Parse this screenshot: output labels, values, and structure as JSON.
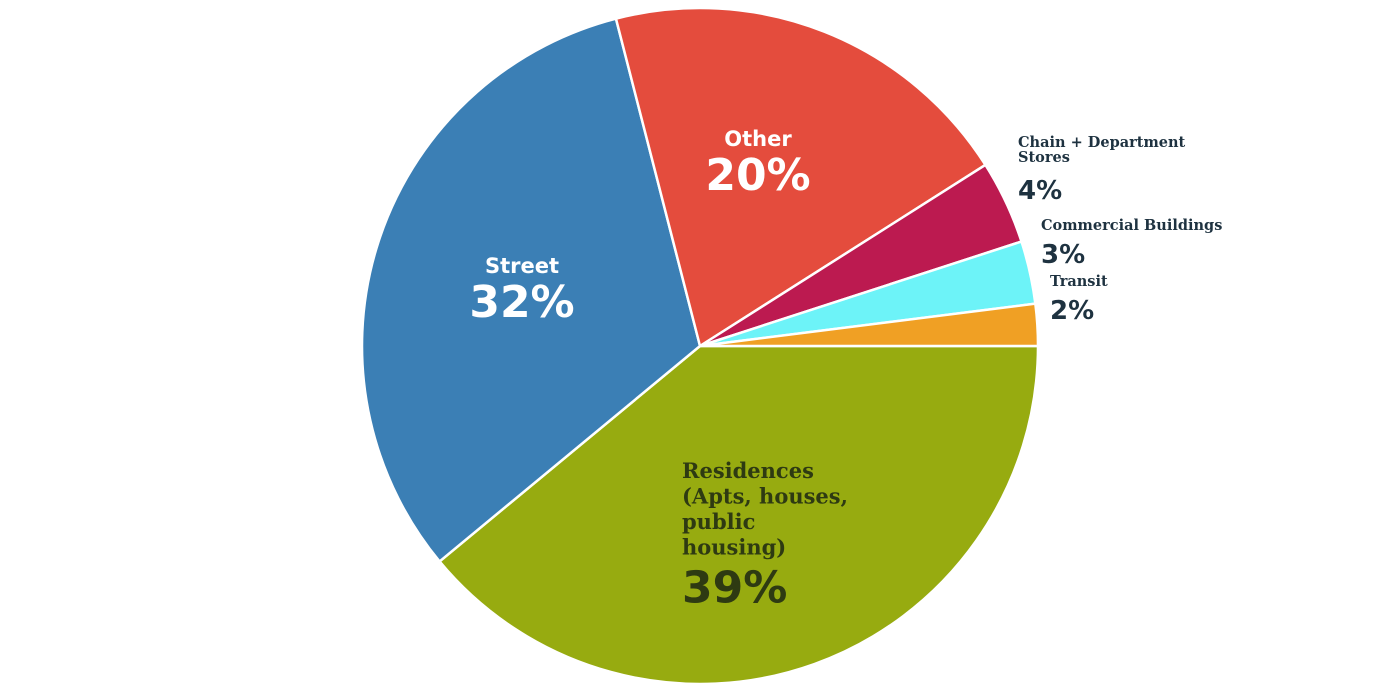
{
  "chart_data": {
    "type": "pie",
    "start_angle_deg": 0,
    "direction": "clockwise",
    "slices": [
      {
        "label": "Residences\n(Apts, houses,\npublic\nhousing)",
        "value": 39,
        "value_label": "39%",
        "color": "#97ab10",
        "label_color": "#2e3a12",
        "label_font": "serif"
      },
      {
        "label": "Street",
        "value": 32,
        "value_label": "32%",
        "color": "#3b7fb5",
        "label_color": "#ffffff",
        "label_font": "sans"
      },
      {
        "label": "Other",
        "value": 20,
        "value_label": "20%",
        "color": "#e44c3d",
        "label_color": "#ffffff",
        "label_font": "sans"
      },
      {
        "label": "Chain + Department\nStores",
        "value": 4,
        "value_label": "4%",
        "color": "#bc1a50",
        "label_color": "#1e3240",
        "label_font": "serif"
      },
      {
        "label": "Commercial Buildings",
        "value": 3,
        "value_label": "3%",
        "color": "#6df3f8",
        "label_color": "#1e3240",
        "label_font": "serif"
      },
      {
        "label": "Transit",
        "value": 2,
        "value_label": "2%",
        "color": "#f0a024",
        "label_color": "#1e3240",
        "label_font": "serif"
      }
    ]
  }
}
